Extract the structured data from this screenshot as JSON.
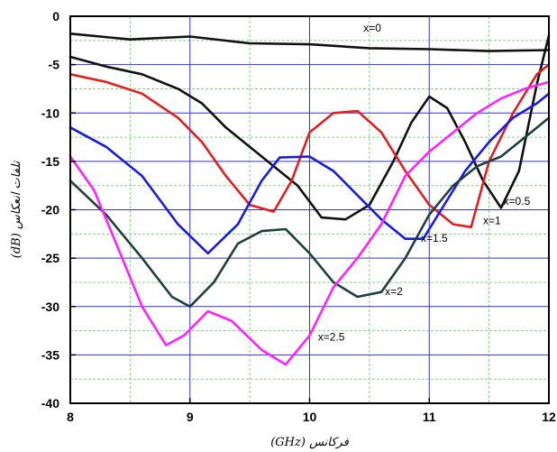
{
  "chart_data": {
    "type": "line",
    "xlabel": "فرکانس (GHz)",
    "ylabel": "تلفات انعکاس (dB)",
    "xlim": [
      8,
      12
    ],
    "ylim": [
      -40,
      0
    ],
    "x_ticks": [
      "8",
      "9",
      "10",
      "11",
      "12"
    ],
    "y_ticks": [
      "0",
      "-5",
      "-10",
      "-15",
      "-20",
      "-25",
      "-30",
      "-35",
      "-40"
    ],
    "grid": true,
    "colors": {
      "major_grid": "#3535c8",
      "minor_grid": "#8ad08a",
      "axes": "#000000"
    },
    "series": [
      {
        "name": "x=0",
        "color": "#111111",
        "x": [
          8.0,
          8.5,
          9.0,
          9.5,
          10.0,
          10.5,
          11.0,
          11.5,
          12.0
        ],
        "y": [
          -1.8,
          -2.4,
          -2.1,
          -2.8,
          -2.9,
          -3.3,
          -3.4,
          -3.6,
          -3.5
        ]
      },
      {
        "name": "x=0.5",
        "color": "#111111",
        "x": [
          8.0,
          8.3,
          8.6,
          8.9,
          9.1,
          9.3,
          9.6,
          9.9,
          10.1,
          10.3,
          10.5,
          10.7,
          10.85,
          11.0,
          11.15,
          11.3,
          11.45,
          11.6,
          11.75,
          11.9,
          12.0
        ],
        "y": [
          -4.2,
          -5.2,
          -6.0,
          -7.5,
          -9.0,
          -11.5,
          -14.5,
          -17.5,
          -20.8,
          -21.0,
          -19.5,
          -15.0,
          -11.0,
          -8.3,
          -9.5,
          -13.0,
          -17.0,
          -19.8,
          -16.0,
          -7.0,
          -2.0
        ]
      },
      {
        "name": "x=1",
        "color": "#e02020",
        "x": [
          8.0,
          8.3,
          8.6,
          8.9,
          9.1,
          9.3,
          9.5,
          9.7,
          9.85,
          10.0,
          10.2,
          10.4,
          10.6,
          10.8,
          11.0,
          11.2,
          11.35,
          11.5,
          11.7,
          11.9,
          12.0
        ],
        "y": [
          -6.0,
          -6.8,
          -8.0,
          -10.5,
          -13.0,
          -16.5,
          -19.5,
          -20.2,
          -17.0,
          -12.0,
          -10.0,
          -9.8,
          -12.0,
          -16.0,
          -19.5,
          -21.5,
          -21.8,
          -15.0,
          -10.0,
          -6.0,
          -5.0
        ]
      },
      {
        "name": "x=1.5",
        "color": "#1a1ae0",
        "x": [
          8.0,
          8.3,
          8.6,
          8.9,
          9.15,
          9.4,
          9.6,
          9.75,
          10.0,
          10.2,
          10.4,
          10.6,
          10.8,
          10.95,
          11.1,
          11.3,
          11.5,
          11.7,
          11.9,
          12.0
        ],
        "y": [
          -11.5,
          -13.5,
          -16.5,
          -21.5,
          -24.5,
          -21.5,
          -17.0,
          -14.6,
          -14.5,
          -16.0,
          -18.5,
          -21.0,
          -23.0,
          -23.0,
          -20.0,
          -16.0,
          -13.0,
          -10.5,
          -9.0,
          -8.0
        ]
      },
      {
        "name": "x=2",
        "color": "#1f3f3f",
        "x": [
          8.0,
          8.3,
          8.6,
          8.85,
          9.0,
          9.2,
          9.4,
          9.6,
          9.8,
          10.0,
          10.2,
          10.4,
          10.6,
          10.8,
          11.0,
          11.2,
          11.4,
          11.6,
          11.8,
          12.0
        ],
        "y": [
          -17.0,
          -20.5,
          -25.0,
          -29.0,
          -30.0,
          -27.5,
          -23.5,
          -22.2,
          -22.0,
          -24.5,
          -27.5,
          -29.0,
          -28.5,
          -25.0,
          -20.5,
          -17.5,
          -15.5,
          -14.5,
          -12.5,
          -10.5
        ]
      },
      {
        "name": "x=2.5",
        "color": "#ff22ff",
        "x": [
          8.0,
          8.2,
          8.4,
          8.6,
          8.8,
          8.95,
          9.15,
          9.35,
          9.6,
          9.8,
          10.0,
          10.2,
          10.4,
          10.6,
          10.8,
          11.0,
          11.2,
          11.4,
          11.6,
          11.8,
          12.0
        ],
        "y": [
          -14.5,
          -18.0,
          -24.0,
          -30.0,
          -34.0,
          -33.0,
          -30.5,
          -31.5,
          -34.5,
          -36.0,
          -33.0,
          -28.0,
          -25.0,
          -21.5,
          -16.5,
          -14.0,
          -12.0,
          -10.0,
          -8.5,
          -7.5,
          -6.8
        ]
      }
    ],
    "annotations": [
      {
        "text": "x=0",
        "x": 10.45,
        "y": -1.6
      },
      {
        "text": "x=0.5",
        "x": 11.62,
        "y": -19.5
      },
      {
        "text": "x=1",
        "x": 11.45,
        "y": -21.5
      },
      {
        "text": "x=1.5",
        "x": 10.93,
        "y": -23.3
      },
      {
        "text": "x=2",
        "x": 10.63,
        "y": -28.8
      },
      {
        "text": "x=2.5",
        "x": 10.07,
        "y": -33.5
      }
    ]
  }
}
